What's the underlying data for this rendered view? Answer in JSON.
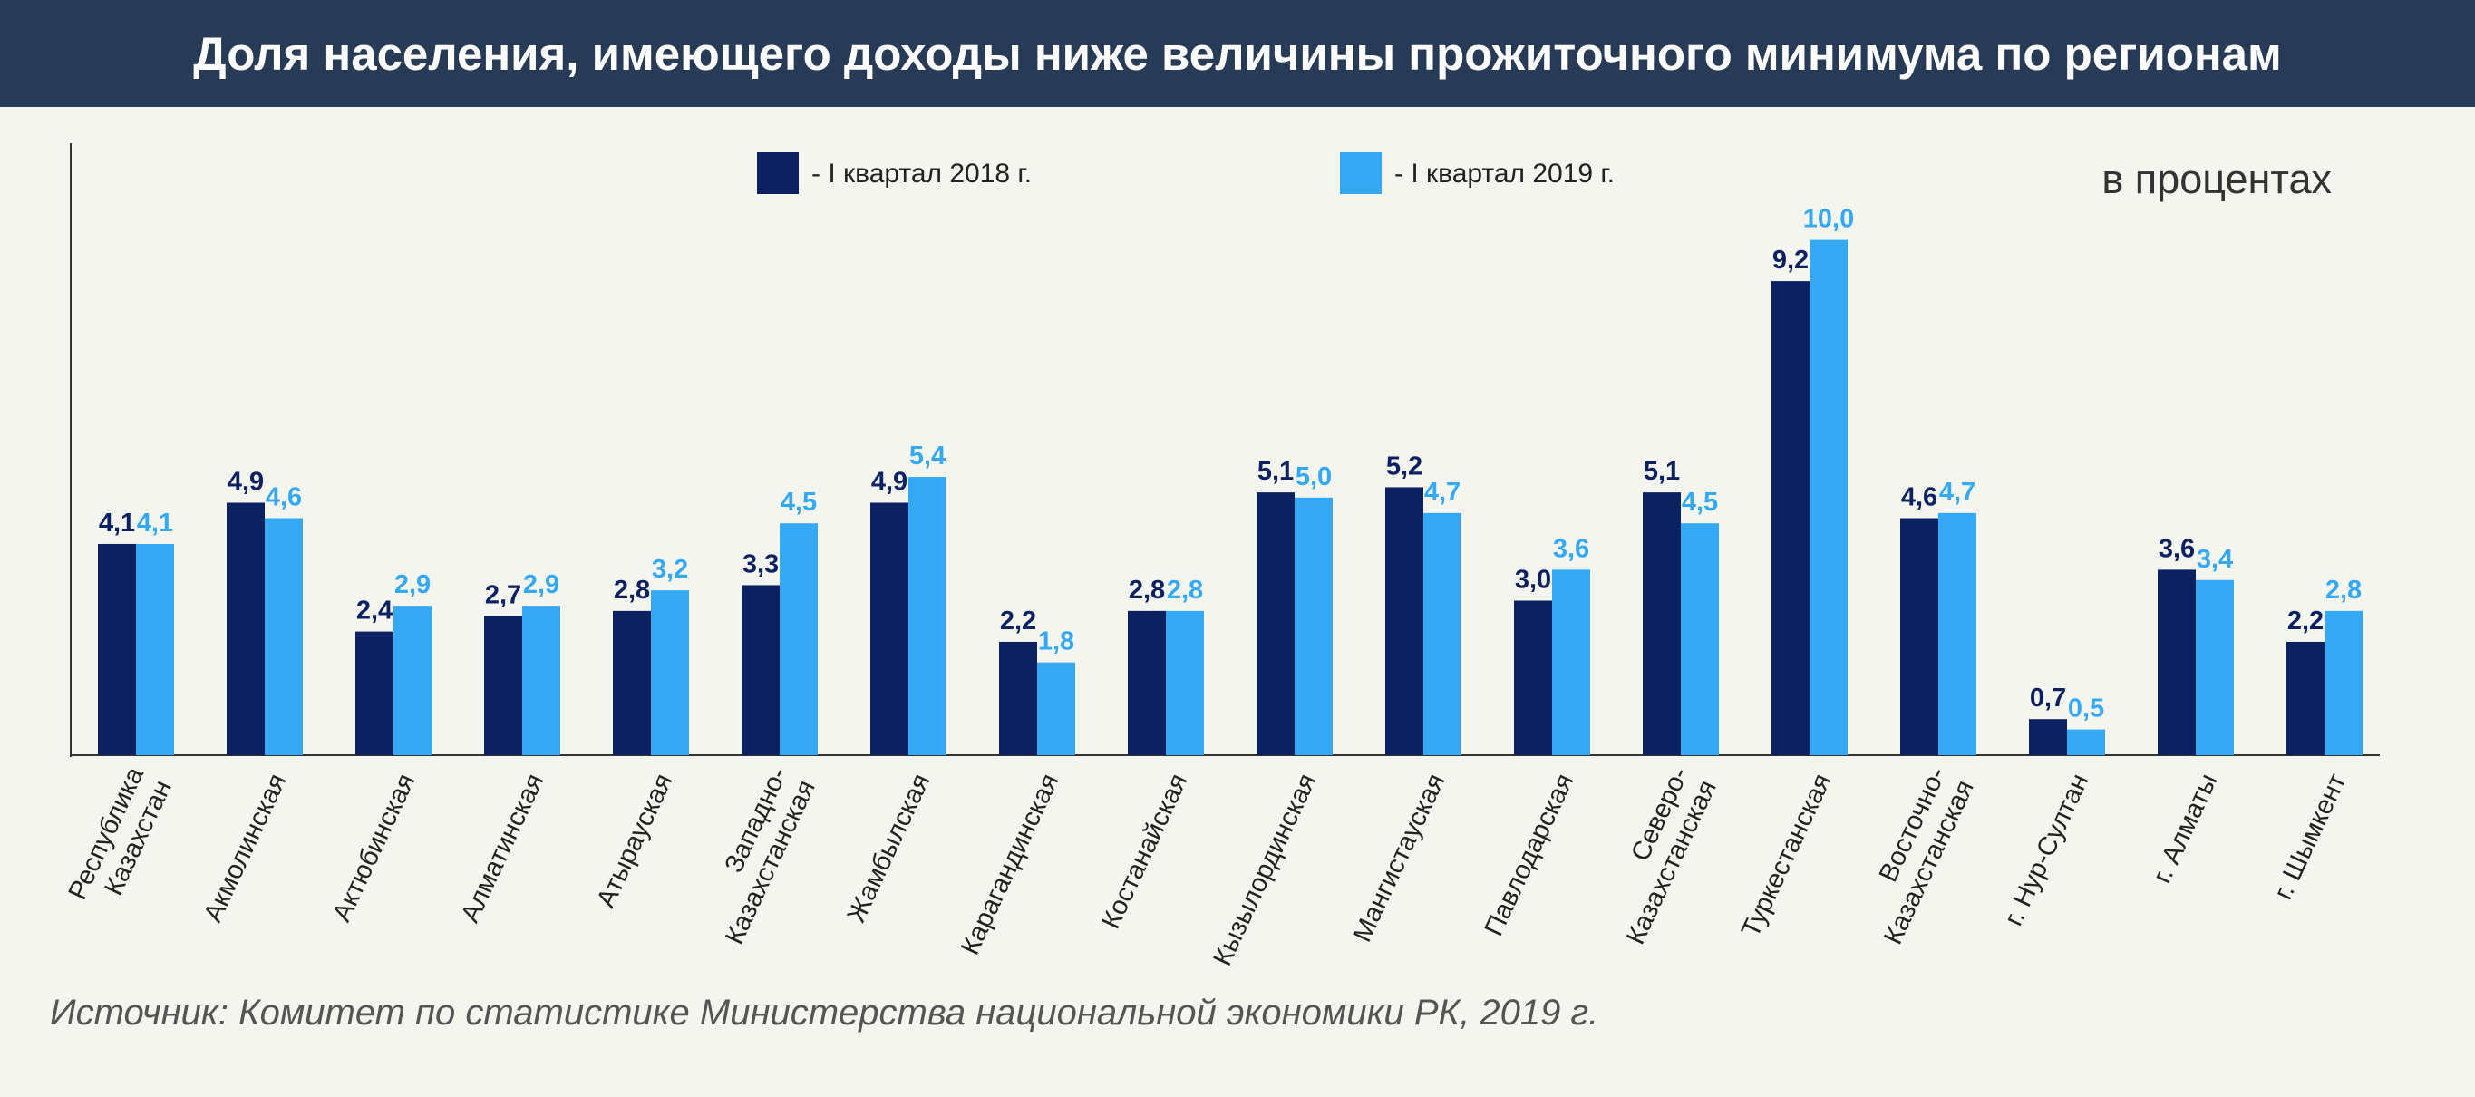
{
  "header": {
    "title": "Доля населения, имеющего доходы ниже величины прожиточного минимума по регионам"
  },
  "source": "Источник: Комитет по статистике Министерства национальной экономики РК, 2019 г.",
  "colors": {
    "series_2018": "#0c2260",
    "series_2019": "#35a9f3",
    "header_bg": "#273a56"
  },
  "chart_data": {
    "type": "bar",
    "unit_label": "в процентах",
    "categories": [
      [
        "Республика",
        "Казахстан"
      ],
      [
        "Акмолинская"
      ],
      [
        "Актюбинская"
      ],
      [
        "Алматинская"
      ],
      [
        "Атырауская"
      ],
      [
        "Западно-",
        "Казахстанская"
      ],
      [
        "Жамбылская"
      ],
      [
        "Карагандинская"
      ],
      [
        "Костанайская"
      ],
      [
        "Кызылординская"
      ],
      [
        "Мангистауская"
      ],
      [
        "Павлодарская"
      ],
      [
        "Северо-",
        "Казахстанская"
      ],
      [
        "Туркестанская"
      ],
      [
        "Восточно-",
        "Казахстанская"
      ],
      [
        "г. Нур-Султан"
      ],
      [
        "г. Алматы"
      ],
      [
        "г. Шымкент"
      ]
    ],
    "series": [
      {
        "name": "- I квартал 2018 г.",
        "values": [
          4.1,
          4.9,
          2.4,
          2.7,
          2.8,
          3.3,
          4.9,
          2.2,
          2.8,
          5.1,
          5.2,
          3.0,
          5.1,
          9.2,
          4.6,
          0.7,
          3.6,
          2.2
        ],
        "labels": [
          "4,1",
          "4,9",
          "2,4",
          "2,7",
          "2,8",
          "3,3",
          "4,9",
          "2,2",
          "2,8",
          "5,1",
          "5,2",
          "3,0",
          "5,1",
          "9,2",
          "4,6",
          "0,7",
          "3,6",
          "2,2"
        ]
      },
      {
        "name": "- I квартал 2019 г.",
        "values": [
          4.1,
          4.6,
          2.9,
          2.9,
          3.2,
          4.5,
          5.4,
          1.8,
          2.8,
          5.0,
          4.7,
          3.6,
          4.5,
          10.0,
          4.7,
          0.5,
          3.4,
          2.8
        ],
        "labels": [
          "4,1",
          "4,6",
          "2,9",
          "2,9",
          "3,2",
          "4,5",
          "5,4",
          "1,8",
          "2,8",
          "5,0",
          "4,7",
          "3,6",
          "4,5",
          "10,0",
          "4,7",
          "0,5",
          "3,4",
          "2,8"
        ]
      }
    ],
    "ylim": [
      0,
      11.7
    ],
    "legend_position": "top-center",
    "grid": false
  }
}
